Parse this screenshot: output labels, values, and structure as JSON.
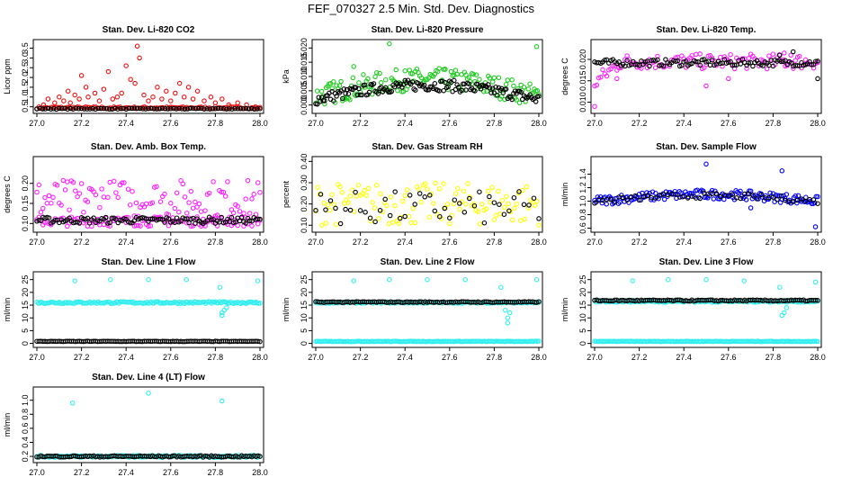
{
  "page": {
    "title": "FEF_070327  2.5 Min. Std. Dev. Diagnostics"
  },
  "colors": {
    "red": "#ee1111",
    "green": "#22cc22",
    "magenta": "#ff22ff",
    "yellow": "#ffff00",
    "blue": "#0000ff",
    "cyan": "#33eeee",
    "black": "#000000"
  },
  "chart_data": [
    {
      "type": "scatter",
      "title": "Stan. Dev. Li-820 CO2",
      "ylabel": "Licor ppm",
      "xlim": [
        27.0,
        28.0
      ],
      "ylim": [
        0.3,
        3.8
      ],
      "xticks": [
        "27.0",
        "27.2",
        "27.4",
        "27.6",
        "27.8",
        "28.0"
      ],
      "yticks": [
        "0.5",
        "1.0",
        "1.5",
        "2.0",
        "2.5",
        "3.0",
        "3.5"
      ],
      "series": [
        {
          "name": "scatter",
          "color": "red",
          "points": [
            [
              27.03,
              0.6
            ],
            [
              27.05,
              0.9
            ],
            [
              27.08,
              0.7
            ],
            [
              27.1,
              1.0
            ],
            [
              27.12,
              0.8
            ],
            [
              27.14,
              1.3
            ],
            [
              27.15,
              0.7
            ],
            [
              27.17,
              1.1
            ],
            [
              27.19,
              0.9
            ],
            [
              27.2,
              2.1
            ],
            [
              27.22,
              1.5
            ],
            [
              27.23,
              1.0
            ],
            [
              27.26,
              1.2
            ],
            [
              27.28,
              0.8
            ],
            [
              27.3,
              1.4
            ],
            [
              27.32,
              2.3
            ],
            [
              27.34,
              0.9
            ],
            [
              27.36,
              1.0
            ],
            [
              27.38,
              1.2
            ],
            [
              27.4,
              2.6
            ],
            [
              27.42,
              1.9
            ],
            [
              27.44,
              1.7
            ],
            [
              27.45,
              3.6
            ],
            [
              27.46,
              3.0
            ],
            [
              27.48,
              1.1
            ],
            [
              27.5,
              0.8
            ],
            [
              27.52,
              1.0
            ],
            [
              27.54,
              1.5
            ],
            [
              27.56,
              0.9
            ],
            [
              27.58,
              1.3
            ],
            [
              27.6,
              0.8
            ],
            [
              27.62,
              1.2
            ],
            [
              27.64,
              1.7
            ],
            [
              27.66,
              1.0
            ],
            [
              27.68,
              1.5
            ],
            [
              27.7,
              0.9
            ],
            [
              27.72,
              1.3
            ],
            [
              27.75,
              0.8
            ],
            [
              27.78,
              1.0
            ],
            [
              27.8,
              0.7
            ],
            [
              27.83,
              0.9
            ],
            [
              27.86,
              0.6
            ],
            [
              27.9,
              0.7
            ],
            [
              27.94,
              0.6
            ],
            [
              27.98,
              0.5
            ]
          ]
        },
        {
          "name": "band",
          "color": "red",
          "y": 0.45,
          "spread": 0.05
        },
        {
          "name": "scatter",
          "color": "black",
          "y": 0.4,
          "spread": 0.05
        }
      ]
    },
    {
      "type": "scatter",
      "title": "Stan. Dev. Li-820 Pressure",
      "ylabel": "kPa",
      "xlim": [
        27.0,
        28.0
      ],
      "ylim": [
        -0.002,
        0.022
      ],
      "xticks": [
        "27.0",
        "27.2",
        "27.4",
        "27.6",
        "27.8",
        "28.0"
      ],
      "yticks": [
        "0.000",
        "0.005",
        "0.010",
        "0.015",
        "0.020"
      ],
      "series": [
        {
          "name": "arch",
          "color": "green",
          "base": 0.003,
          "peak": 0.009,
          "spread": 0.004
        },
        {
          "name": "arch",
          "color": "black",
          "base": 0.002,
          "peak": 0.007,
          "spread": 0.002
        },
        {
          "name": "scatter",
          "color": "green",
          "points": [
            [
              27.33,
              0.0215
            ],
            [
              27.99,
              0.0205
            ],
            [
              27.17,
              0.0135
            ],
            [
              27.58,
              0.0125
            ],
            [
              27.7,
              0.011
            ],
            [
              27.4,
              0.012
            ]
          ]
        }
      ]
    },
    {
      "type": "scatter",
      "title": "Stan. Dev. Li-820 Temp.",
      "ylabel": "degrees C",
      "xlim": [
        27.0,
        28.0
      ],
      "ylim": [
        0.008,
        0.024
      ],
      "xticks": [
        "27.0",
        "27.2",
        "27.4",
        "27.6",
        "27.8",
        "28.0"
      ],
      "yticks": [
        "0.010",
        "0.015",
        "0.020"
      ],
      "series": [
        {
          "name": "band",
          "color": "magenta",
          "y": 0.0195,
          "spread": 0.0018,
          "rise": 0.005
        },
        {
          "name": "band",
          "color": "black",
          "y": 0.0192,
          "spread": 0.0008
        },
        {
          "name": "scatter",
          "color": "magenta",
          "points": [
            [
              27.0,
              0.009
            ],
            [
              27.1,
              0.0155
            ],
            [
              27.5,
              0.0138
            ],
            [
              27.85,
              0.0215
            ],
            [
              27.88,
              0.021
            ],
            [
              27.6,
              0.0155
            ]
          ]
        },
        {
          "name": "scatter",
          "color": "black",
          "points": [
            [
              28.0,
              0.0155
            ],
            [
              27.89,
              0.0218
            ],
            [
              27.83,
              0.021
            ]
          ]
        }
      ]
    },
    {
      "type": "scatter",
      "title": "Stan. Dev. Amb. Box Temp.",
      "ylabel": "degrees C",
      "xlim": [
        27.0,
        28.0
      ],
      "ylim": [
        0.085,
        0.26
      ],
      "xticks": [
        "27.0",
        "27.2",
        "27.4",
        "27.6",
        "27.8",
        "28.0"
      ],
      "yticks": [
        "0.10",
        "0.15",
        "0.20"
      ],
      "series": [
        {
          "name": "band",
          "color": "magenta",
          "y": 0.16,
          "spread": 0.05
        },
        {
          "name": "band",
          "color": "magenta",
          "y": 0.105,
          "spread": 0.012
        },
        {
          "name": "band",
          "color": "black",
          "y": 0.108,
          "spread": 0.008
        }
      ]
    },
    {
      "type": "scatter",
      "title": "Stan. Dev. Gas Stream RH",
      "ylabel": "percent",
      "xlim": [
        27.0,
        28.0
      ],
      "ylim": [
        0.08,
        0.41
      ],
      "xticks": [
        "27.0",
        "27.2",
        "27.4",
        "27.6",
        "27.8",
        "28.0"
      ],
      "yticks": [
        "0.10",
        "0.20",
        "0.30",
        "0.40"
      ],
      "series": [
        {
          "name": "band",
          "color": "yellow",
          "y": 0.2,
          "spread": 0.1
        },
        {
          "name": "band",
          "color": "black",
          "y": 0.18,
          "spread": 0.08,
          "sparse": true
        }
      ]
    },
    {
      "type": "scatter",
      "title": "Stan. Dev. Sample Flow",
      "ylabel": "ml/min",
      "xlim": [
        27.0,
        28.0
      ],
      "ylim": [
        0.58,
        1.62
      ],
      "xticks": [
        "27.0",
        "27.2",
        "27.4",
        "27.6",
        "27.8",
        "28.0"
      ],
      "yticks": [
        "0.6",
        "0.8",
        "1.0",
        "1.2",
        "1.4"
      ],
      "series": [
        {
          "name": "arch",
          "color": "blue",
          "base": 1.0,
          "peak": 1.1,
          "spread": 0.07
        },
        {
          "name": "arch",
          "color": "black",
          "base": 1.0,
          "peak": 1.08,
          "spread": 0.04,
          "sparse": true
        },
        {
          "name": "scatter",
          "color": "blue",
          "points": [
            [
              27.5,
              1.55
            ],
            [
              27.84,
              1.45
            ],
            [
              27.99,
              0.62
            ],
            [
              27.7,
              0.9
            ]
          ]
        }
      ]
    },
    {
      "type": "scatter",
      "title": "Stan. Dev. Line 1 Flow",
      "ylabel": "ml/min",
      "xlim": [
        27.0,
        28.0
      ],
      "ylim": [
        -0.5,
        27
      ],
      "xticks": [
        "27.0",
        "27.2",
        "27.4",
        "27.6",
        "27.8",
        "28.0"
      ],
      "yticks": [
        "0",
        "5",
        "10",
        "15",
        "20",
        "25"
      ],
      "series": [
        {
          "name": "band",
          "color": "cyan",
          "y": 16.0,
          "spread": 0.4,
          "dense": true
        },
        {
          "name": "band",
          "color": "black",
          "y": 0.8,
          "spread": 0.1
        },
        {
          "name": "scatter",
          "color": "cyan",
          "points": [
            [
              27.17,
              24.5
            ],
            [
              27.33,
              25
            ],
            [
              27.5,
              25
            ],
            [
              27.67,
              25
            ],
            [
              27.99,
              24.5
            ],
            [
              27.82,
              22
            ],
            [
              27.83,
              11
            ],
            [
              27.84,
              13
            ],
            [
              27.85,
              14
            ],
            [
              27.83,
              12
            ]
          ]
        }
      ]
    },
    {
      "type": "scatter",
      "title": "Stan. Dev. Line 2 Flow",
      "ylabel": "ml/min",
      "xlim": [
        27.0,
        28.0
      ],
      "ylim": [
        -0.5,
        27
      ],
      "xticks": [
        "27.0",
        "27.2",
        "27.4",
        "27.6",
        "27.8",
        "28.0"
      ],
      "yticks": [
        "0",
        "5",
        "10",
        "15",
        "20",
        "25"
      ],
      "series": [
        {
          "name": "band",
          "color": "cyan",
          "y": 16.0,
          "spread": 0.3,
          "dense": true
        },
        {
          "name": "band",
          "color": "black",
          "y": 16.2,
          "spread": 0.2
        },
        {
          "name": "band",
          "color": "cyan",
          "y": 0.8,
          "spread": 0.1,
          "dense": true
        },
        {
          "name": "scatter",
          "color": "cyan",
          "points": [
            [
              27.17,
              24.5
            ],
            [
              27.33,
              25
            ],
            [
              27.5,
              25
            ],
            [
              27.67,
              25
            ],
            [
              27.99,
              25
            ],
            [
              27.86,
              8
            ],
            [
              27.86,
              10
            ],
            [
              27.85,
              13
            ],
            [
              27.87,
              12
            ],
            [
              27.83,
              22
            ]
          ]
        }
      ]
    },
    {
      "type": "scatter",
      "title": "Stan. Dev. Line 3 Flow",
      "ylabel": "ml/min",
      "xlim": [
        27.0,
        28.0
      ],
      "ylim": [
        -0.5,
        27
      ],
      "xticks": [
        "27.0",
        "27.2",
        "27.4",
        "27.6",
        "27.8",
        "28.0"
      ],
      "yticks": [
        "0",
        "5",
        "10",
        "15",
        "20",
        "25"
      ],
      "series": [
        {
          "name": "band",
          "color": "cyan",
          "y": 16.5,
          "spread": 0.4,
          "dense": true
        },
        {
          "name": "band",
          "color": "black",
          "y": 16.8,
          "spread": 0.25
        },
        {
          "name": "band",
          "color": "cyan",
          "y": 0.8,
          "spread": 0.1,
          "dense": true
        },
        {
          "name": "scatter",
          "color": "cyan",
          "points": [
            [
              27.17,
              24.5
            ],
            [
              27.33,
              25
            ],
            [
              27.5,
              25
            ],
            [
              27.67,
              24.5
            ],
            [
              27.99,
              24
            ],
            [
              27.85,
              12
            ],
            [
              27.86,
              14
            ],
            [
              27.84,
              11
            ],
            [
              27.83,
              22
            ]
          ]
        }
      ]
    },
    {
      "type": "scatter",
      "title": "Stan. Dev. Line 4 (LT) Flow",
      "ylabel": "ml/min",
      "xlim": [
        27.0,
        28.0
      ],
      "ylim": [
        0.15,
        1.15
      ],
      "xticks": [
        "27.0",
        "27.2",
        "27.4",
        "27.6",
        "27.8",
        "28.0"
      ],
      "yticks": [
        "0.2",
        "0.4",
        "0.6",
        "0.8",
        "1.0"
      ],
      "series": [
        {
          "name": "band",
          "color": "cyan",
          "y": 0.2,
          "spread": 0.015,
          "dense": true
        },
        {
          "name": "band",
          "color": "black",
          "y": 0.2,
          "spread": 0.01
        },
        {
          "name": "scatter",
          "color": "cyan",
          "points": [
            [
              27.16,
              0.96
            ],
            [
              27.5,
              1.1
            ],
            [
              27.83,
              0.99
            ]
          ]
        }
      ]
    }
  ]
}
